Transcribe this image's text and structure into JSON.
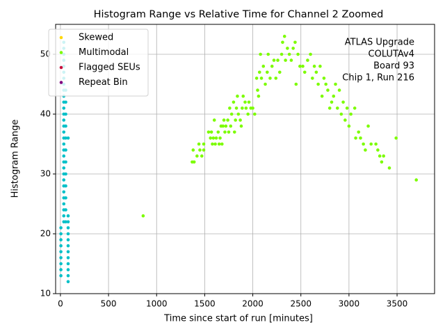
{
  "chart_data": {
    "type": "scatter",
    "title": "Histogram Range vs Relative Time for Channel 2 Zoomed",
    "xlabel": "Time since start of run [minutes]",
    "ylabel": "Histogram Range",
    "annotation": [
      "ATLAS Upgrade",
      "COLUTAv4",
      "Board 93",
      "Chip 1, Run 216"
    ],
    "xlim": [
      -50,
      3890
    ],
    "ylim": [
      10,
      55
    ],
    "xticks": [
      0,
      500,
      1000,
      1500,
      2000,
      2500,
      3000,
      3500
    ],
    "yticks": [
      10,
      20,
      30,
      40,
      50
    ],
    "grid": true,
    "legend": "upper left",
    "series": [
      {
        "color": "#00c0c8",
        "x": [
          5,
          5,
          5,
          5,
          5,
          5,
          5,
          5,
          5,
          35,
          35,
          35,
          35,
          35,
          35,
          35,
          35,
          35,
          35,
          35,
          35,
          35,
          35,
          35,
          35,
          35,
          35,
          35,
          35,
          35,
          35,
          35,
          35,
          35,
          35,
          35,
          35,
          35,
          35,
          35,
          55,
          55,
          55,
          55,
          55,
          55,
          55,
          55,
          55,
          55,
          55,
          55,
          80,
          80,
          80,
          80,
          80,
          80,
          80,
          80,
          80,
          80,
          80,
          80,
          80
        ],
        "values": [
          13,
          14,
          15,
          16,
          17,
          18,
          19,
          20,
          21,
          22,
          23,
          24,
          25,
          26,
          27,
          28,
          29,
          30,
          31,
          32,
          33,
          34,
          35,
          36,
          37,
          38,
          39,
          40,
          41,
          42,
          43,
          44,
          45,
          46,
          47,
          48,
          49,
          50,
          51,
          52,
          22,
          24,
          26,
          28,
          30,
          32,
          34,
          36,
          38,
          40,
          42,
          44,
          12,
          13,
          14,
          15,
          16,
          17,
          18,
          19,
          20,
          21,
          22,
          23,
          36
        ]
      },
      {
        "name": "Skewed",
        "color": "#ffd700",
        "x": [],
        "values": []
      },
      {
        "name": "Multimodal",
        "color": "#7cfc00",
        "x": [
          860,
          1370,
          1390,
          1380,
          1420,
          1440,
          1450,
          1470,
          1490,
          1490,
          1540,
          1560,
          1570,
          1580,
          1590,
          1600,
          1610,
          1620,
          1640,
          1650,
          1660,
          1670,
          1680,
          1690,
          1700,
          1710,
          1720,
          1740,
          1750,
          1760,
          1770,
          1780,
          1800,
          1810,
          1820,
          1830,
          1840,
          1850,
          1870,
          1880,
          1890,
          1900,
          1920,
          1930,
          1950,
          1960,
          1980,
          2000,
          2020,
          2040,
          2050,
          2060,
          2070,
          2080,
          2090,
          2110,
          2130,
          2150,
          2160,
          2180,
          2200,
          2220,
          2240,
          2260,
          2280,
          2300,
          2310,
          2330,
          2340,
          2360,
          2380,
          2400,
          2420,
          2440,
          2450,
          2470,
          2490,
          2520,
          2540,
          2570,
          2600,
          2620,
          2640,
          2660,
          2680,
          2700,
          2720,
          2740,
          2760,
          2780,
          2800,
          2820,
          2840,
          2860,
          2880,
          2900,
          2920,
          2940,
          2960,
          2980,
          3000,
          3020,
          3060,
          3070,
          3100,
          3120,
          3150,
          3170,
          3200,
          3230,
          3280,
          3300,
          3320,
          3340,
          3360,
          3420,
          3490,
          3700
        ],
        "values": [
          23,
          32,
          32,
          34,
          33,
          35,
          34,
          33,
          34,
          35,
          37,
          36,
          37,
          35,
          36,
          39,
          35,
          36,
          37,
          35,
          36,
          38,
          35,
          38,
          39,
          37,
          38,
          39,
          37,
          41,
          38,
          40,
          42,
          37,
          39,
          41,
          43,
          40,
          39,
          38,
          41,
          43,
          42,
          41,
          40,
          42,
          41,
          41,
          40,
          46,
          44,
          43,
          47,
          50,
          46,
          48,
          45,
          47,
          50,
          46,
          48,
          49,
          46,
          49,
          47,
          50,
          52,
          53,
          49,
          51,
          50,
          49,
          51,
          52,
          45,
          50,
          48,
          48,
          47,
          49,
          50,
          46,
          48,
          47,
          45,
          48,
          43,
          46,
          45,
          44,
          41,
          42,
          43,
          45,
          41,
          44,
          40,
          42,
          39,
          41,
          38,
          40,
          41,
          36,
          37,
          36,
          35,
          34,
          38,
          35,
          35,
          34,
          33,
          32,
          33,
          31,
          36,
          29
        ]
      },
      {
        "name": "Flagged SEUs",
        "color": "#c8103c",
        "x": [],
        "values": []
      },
      {
        "name": "Repeat Bin",
        "color": "#800080",
        "x": [],
        "values": []
      }
    ]
  }
}
